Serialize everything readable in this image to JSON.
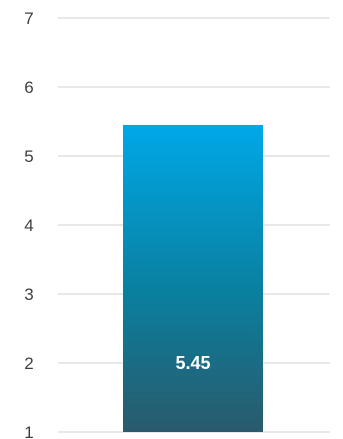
{
  "chart_data": {
    "type": "bar",
    "categories": [
      ""
    ],
    "values": [
      5.45
    ],
    "data_labels": [
      "5.45"
    ],
    "yticks": [
      "1",
      "2",
      "3",
      "4",
      "5",
      "6",
      "7"
    ],
    "ylim": [
      1,
      7
    ],
    "grid": true,
    "legend": "none",
    "title": "",
    "xlabel": "",
    "ylabel": "",
    "colors": {
      "bar_top": "#00a8e8",
      "bar_mid": "#0a7f9e",
      "bar_bottom": "#2a5a6c",
      "gridline": "#d9d9d9",
      "tick_text": "#404040",
      "label_text": "#ffffff"
    }
  }
}
